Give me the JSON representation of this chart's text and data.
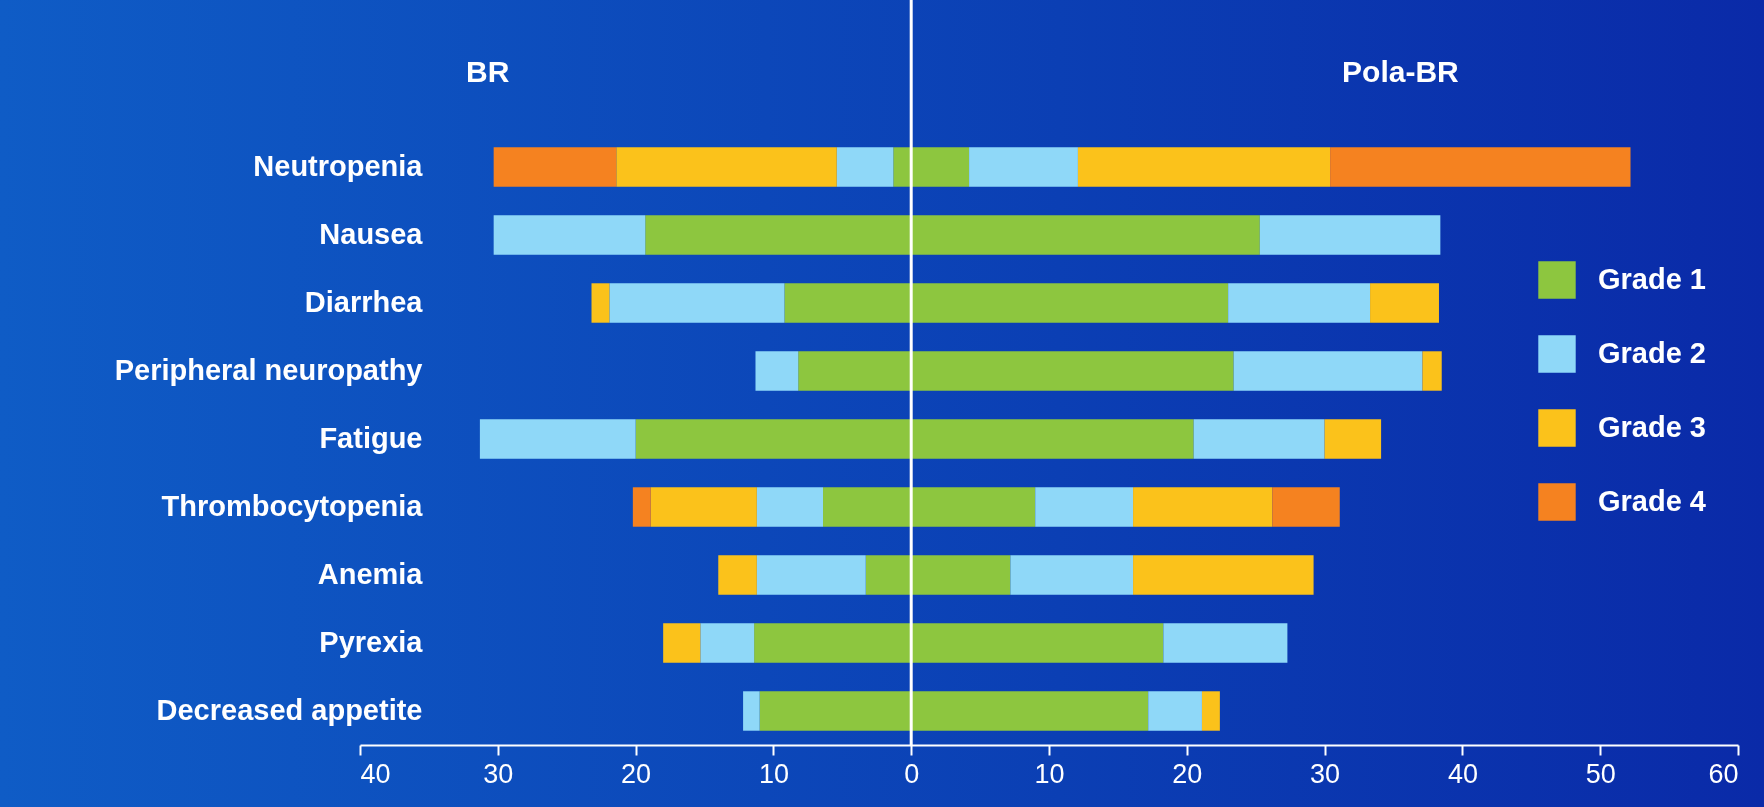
{
  "chart_data": {
    "type": "bar",
    "orientation": "horizontal",
    "stacked": true,
    "categories": [
      "Neutropenia",
      "Nausea",
      "Diarrhea",
      "Peripheral neuropathy",
      "Fatigue",
      "Thrombocytopenia",
      "Anemia",
      "Pyrexia",
      "Decreased appetite"
    ],
    "series": [
      {
        "name": "Grade 1",
        "color": "#8dc63f",
        "values": [
          4.2,
          25.3,
          23.0,
          23.4,
          20.5,
          9.0,
          7.2,
          18.3,
          17.2
        ]
      },
      {
        "name": "Grade 2",
        "color": "#8fd8f8",
        "values": [
          7.9,
          13.1,
          10.3,
          13.7,
          9.5,
          7.1,
          8.9,
          9.0,
          3.9
        ]
      },
      {
        "name": "Grade 3",
        "color": "#fbc21b",
        "values": [
          18.3,
          null,
          5.0,
          1.4,
          4.1,
          10.1,
          13.1,
          null,
          1.3
        ]
      },
      {
        "name": "Grade 4",
        "color": "#f58220",
        "values": [
          21.8,
          null,
          null,
          null,
          null,
          4.9,
          null,
          null,
          null
        ]
      },
      {
        "color": "#8dc63f",
        "values": [
          -1.3,
          -19.3,
          -9.2,
          -8.2,
          -20.0,
          -6.4,
          -3.3,
          -11.4,
          -11.0
        ]
      },
      {
        "color": "#8fd8f8",
        "values": [
          -4.1,
          -11.0,
          -12.7,
          -3.1,
          -11.3,
          -4.8,
          -7.9,
          -3.9,
          -1.2
        ]
      },
      {
        "color": "#fbc21b",
        "values": [
          -16.0,
          null,
          -1.3,
          null,
          null,
          -7.7,
          -2.8,
          -2.7,
          null
        ]
      },
      {
        "color": "#f58220",
        "values": [
          -8.9,
          null,
          null,
          null,
          null,
          -1.3,
          null,
          null,
          null
        ]
      }
    ],
    "xlim": [
      -40,
      60
    ],
    "xticks": [
      {
        "value": -40,
        "label": "40"
      },
      {
        "value": -30,
        "label": "30"
      },
      {
        "value": -20,
        "label": "20"
      },
      {
        "value": -10,
        "label": "10"
      },
      0,
      10,
      20,
      30,
      40,
      50,
      60
    ],
    "ref_lines": [
      {
        "axis": "x",
        "value": 0,
        "color": "#ffffff"
      }
    ],
    "annotations": [
      "BR",
      "Pola-BR"
    ],
    "grid": false,
    "legend": "right"
  }
}
